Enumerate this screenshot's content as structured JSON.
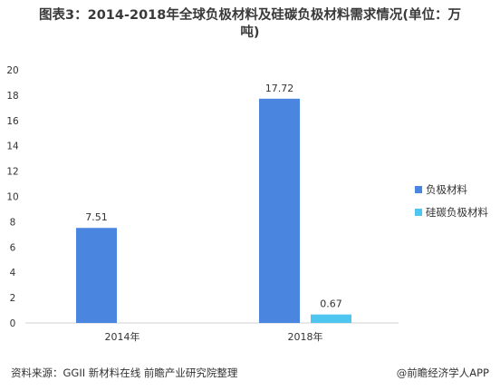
{
  "title_line1": "图表3：2014-2018年全球负极材料及硅碳负极材料需求情况(单位：万",
  "title_line2": "吨)",
  "source": "资料来源：GGII 新材料在线 前瞻产业研究院整理",
  "brand": "@前瞻经济学人APP",
  "colors": {
    "series1": "#4a86e0",
    "series2": "#4fc6f0"
  },
  "chart_data": {
    "type": "bar",
    "categories": [
      "2014年",
      "2018年"
    ],
    "series": [
      {
        "name": "负极材料",
        "values": [
          7.51,
          17.72
        ],
        "labels": [
          "7.51",
          "17.72"
        ]
      },
      {
        "name": "硅碳负极材料",
        "values": [
          null,
          0.67
        ],
        "labels": [
          "",
          "0.67"
        ]
      }
    ],
    "ylim": [
      0,
      20
    ],
    "yticks": [
      "0",
      "2",
      "4",
      "6",
      "8",
      "10",
      "12",
      "14",
      "16",
      "18",
      "20"
    ],
    "legend_position": "right",
    "grid": false
  }
}
